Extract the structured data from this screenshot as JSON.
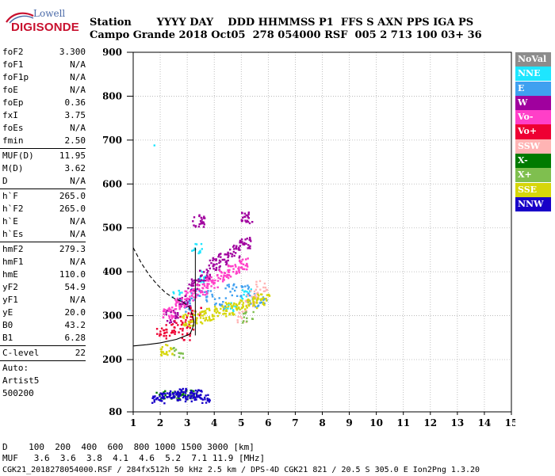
{
  "logo": {
    "line1": "Lowell",
    "line2": "DIGISONDE"
  },
  "header": {
    "line1": "Station       YYYY DAY    DDD HHMMSS P1  FFS S AXN PPS IGA PS",
    "line2": "Campo Grande 2018 Oct05  278 054000 RSF  005 2 713 100 03+ 36"
  },
  "params": {
    "group1": [
      {
        "name": "foF2",
        "value": "3.300"
      },
      {
        "name": "foF1",
        "value": "N/A"
      },
      {
        "name": "foF1p",
        "value": "N/A"
      },
      {
        "name": "foE",
        "value": "N/A"
      },
      {
        "name": "foEp",
        "value": "0.36"
      },
      {
        "name": "fxI",
        "value": "3.75"
      },
      {
        "name": "foEs",
        "value": "N/A"
      },
      {
        "name": "fmin",
        "value": "2.50"
      }
    ],
    "group2": [
      {
        "name": "MUF(D)",
        "value": "11.95"
      },
      {
        "name": "M(D)",
        "value": "3.62"
      },
      {
        "name": "D",
        "value": "N/A"
      }
    ],
    "group3": [
      {
        "name": "h`F",
        "value": "265.0"
      },
      {
        "name": "h`F2",
        "value": "265.0"
      },
      {
        "name": "h`E",
        "value": "N/A"
      },
      {
        "name": "h`Es",
        "value": "N/A"
      }
    ],
    "group4": [
      {
        "name": "hmF2",
        "value": "279.3"
      },
      {
        "name": "hmF1",
        "value": "N/A"
      },
      {
        "name": "hmE",
        "value": "110.0"
      },
      {
        "name": "yF2",
        "value": "54.9"
      },
      {
        "name": "yF1",
        "value": "N/A"
      },
      {
        "name": "yE",
        "value": "20.0"
      },
      {
        "name": "B0",
        "value": "43.2"
      },
      {
        "name": "B1",
        "value": "6.28"
      }
    ],
    "group5": [
      {
        "name": "C-level",
        "value": "22"
      }
    ],
    "autoscale": [
      "Auto:",
      "Artist5",
      "500200"
    ]
  },
  "legend": [
    {
      "label": "NoVal",
      "bg": "#8c8c8c",
      "fg": "#ffffff"
    },
    {
      "label": "NNE",
      "bg": "#1ee6ff",
      "fg": "#ffffff"
    },
    {
      "label": "E",
      "bg": "#3fa0f0",
      "fg": "#ffffff"
    },
    {
      "label": "W",
      "bg": "#a0009e",
      "fg": "#ffffff"
    },
    {
      "label": "Vo-",
      "bg": "#ff3fc8",
      "fg": "#ffffff"
    },
    {
      "label": "Vo+",
      "bg": "#ee0033",
      "fg": "#ffffff"
    },
    {
      "label": "SSW",
      "bg": "#ffb4b4",
      "fg": "#ffffff"
    },
    {
      "label": "X-",
      "bg": "#007a00",
      "fg": "#ffffff"
    },
    {
      "label": "X+",
      "bg": "#7fbf4f",
      "fg": "#ffffff"
    },
    {
      "label": "SSE",
      "bg": "#d6d60a",
      "fg": "#ffffff"
    },
    {
      "label": "NNW",
      "bg": "#1800c8",
      "fg": "#ffffff"
    }
  ],
  "footer": {
    "line1": "D    100  200  400  600  800 1000 1500 3000 [km]",
    "line2": "MUF   3.6  3.6  3.8  4.1  4.6  5.2  7.1 11.9 [MHz]",
    "line3": "CGK21_2018278054000.RSF / 284fx512h 50 kHz 2.5 km / DPS-4D CGK21 821 / 20.5 S 305.0 E Ion2Png 1.3.20"
  },
  "chart_data": {
    "type": "scatter",
    "xlim": [
      1,
      15
    ],
    "ylim": [
      80,
      900
    ],
    "xticks": [
      1,
      2,
      3,
      4,
      5,
      6,
      7,
      8,
      9,
      10,
      11,
      12,
      13,
      14,
      15
    ],
    "yticks": [
      80,
      200,
      300,
      400,
      500,
      600,
      700,
      800,
      900
    ],
    "xlabel": "",
    "ylabel": "",
    "grid": "dotted",
    "series": [
      {
        "name": "NNE",
        "color": "#1ee6ff",
        "points": [
          [
            1.75,
            690
          ],
          [
            2.6,
            345
          ],
          [
            3.3,
            455
          ],
          [
            3.5,
            392
          ],
          [
            4.6,
            318
          ],
          [
            5.2,
            348
          ]
        ]
      },
      {
        "name": "E",
        "color": "#3fa0f0",
        "points": [
          [
            3.0,
            325
          ],
          [
            3.3,
            352
          ],
          [
            3.8,
            345
          ],
          [
            4.2,
            330
          ],
          [
            4.6,
            360
          ],
          [
            5.1,
            358
          ],
          [
            5.4,
            340
          ],
          [
            5.7,
            332
          ]
        ]
      },
      {
        "name": "W",
        "color": "#a0009e",
        "points": [
          [
            2.4,
            300
          ],
          [
            2.9,
            335
          ],
          [
            3.2,
            372
          ],
          [
            3.6,
            395
          ],
          [
            4.0,
            420
          ],
          [
            4.3,
            432
          ],
          [
            4.7,
            448
          ],
          [
            5.1,
            468
          ],
          [
            3.4,
            518
          ],
          [
            5.2,
            525
          ]
        ]
      },
      {
        "name": "Vo-",
        "color": "#ff3fc8",
        "points": [
          [
            2.3,
            310
          ],
          [
            2.7,
            330
          ],
          [
            3.1,
            350
          ],
          [
            3.5,
            362
          ],
          [
            3.9,
            378
          ],
          [
            4.3,
            392
          ],
          [
            4.7,
            405
          ],
          [
            5.0,
            420
          ]
        ]
      },
      {
        "name": "Vo+",
        "color": "#ee0033",
        "points": [
          [
            2.0,
            262
          ],
          [
            2.3,
            268
          ],
          [
            2.6,
            278
          ],
          [
            2.9,
            288
          ],
          [
            3.1,
            300
          ],
          [
            3.3,
            312
          ],
          [
            3.0,
            260
          ]
        ]
      },
      {
        "name": "SSW",
        "color": "#ffb4b4",
        "points": [
          [
            5.0,
            300
          ],
          [
            5.3,
            335
          ],
          [
            5.5,
            355
          ],
          [
            5.7,
            370
          ]
        ]
      },
      {
        "name": "X-",
        "color": "#007a00",
        "points": [
          [
            2.0,
            122
          ],
          [
            2.5,
            118
          ],
          [
            3.0,
            125
          ]
        ]
      },
      {
        "name": "X+",
        "color": "#7fbf4f",
        "points": [
          [
            2.6,
            122
          ],
          [
            3.2,
            120
          ],
          [
            2.6,
            220
          ],
          [
            5.2,
            300
          ]
        ]
      },
      {
        "name": "SSE",
        "color": "#d6d60a",
        "points": [
          [
            3.0,
            292
          ],
          [
            3.4,
            298
          ],
          [
            3.8,
            305
          ],
          [
            4.2,
            312
          ],
          [
            4.6,
            318
          ],
          [
            5.0,
            325
          ],
          [
            5.4,
            332
          ],
          [
            5.8,
            340
          ],
          [
            2.2,
            222
          ]
        ]
      },
      {
        "name": "NNW",
        "color": "#1800c8",
        "points": [
          [
            1.9,
            110
          ],
          [
            2.2,
            122
          ],
          [
            2.5,
            118
          ],
          [
            2.8,
            125
          ],
          [
            3.1,
            116
          ],
          [
            3.3,
            122
          ],
          [
            3.6,
            112
          ]
        ]
      }
    ],
    "profile_curve": [
      [
        1.0,
        455
      ],
      [
        1.3,
        420
      ],
      [
        1.6,
        392
      ],
      [
        1.9,
        370
      ],
      [
        2.2,
        352
      ],
      [
        2.5,
        340
      ],
      [
        2.8,
        332
      ],
      [
        3.05,
        322
      ],
      [
        3.2,
        300
      ],
      [
        3.25,
        285
      ],
      [
        3.2,
        272
      ],
      [
        3.1,
        258
      ],
      [
        2.6,
        246
      ],
      [
        2.0,
        238
      ],
      [
        1.5,
        234
      ],
      [
        1.0,
        231
      ]
    ],
    "vertical_marker_x": 3.3
  }
}
